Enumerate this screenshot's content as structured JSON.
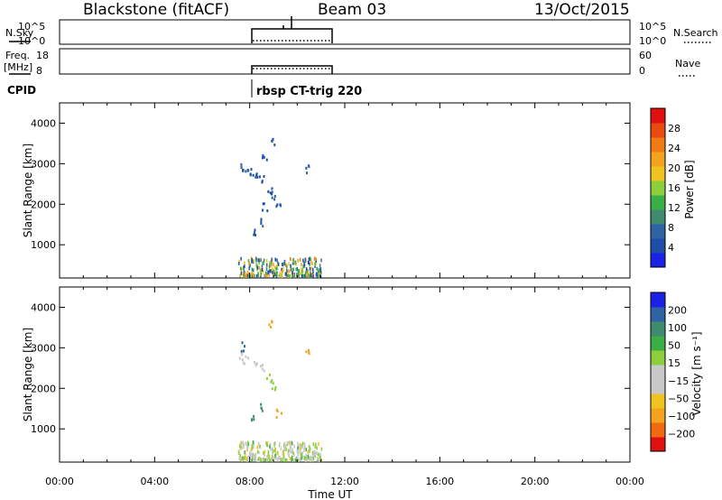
{
  "header": {
    "station": "Blackstone (fitACF)",
    "beam": "Beam 03",
    "date": "13/Oct/2015"
  },
  "top_panels": {
    "nsky_label": "N.Sky",
    "nsky_ticks": [
      "10^5",
      "10^0"
    ],
    "freq_label_1": "Freq.",
    "freq_label_2": "[MHz]",
    "freq_ticks": [
      "18",
      "8"
    ],
    "nsearch_label": "N.Search",
    "nsearch_ticks": [
      "10^5",
      "10^0"
    ],
    "nave_label": "Nave",
    "nave_ticks": [
      "60",
      "0"
    ],
    "cpid_label": "CPID",
    "cpid_text": "rbsp CT-trig 220",
    "active_hours": [
      7.5,
      11.0
    ]
  },
  "colors": {
    "power": [
      "#1a22e6",
      "#1f4ea8",
      "#2e63a6",
      "#3f8b6e",
      "#3cae46",
      "#8ccf3c",
      "#f0c31e",
      "#f5a31e",
      "#f07a14",
      "#e84a10",
      "#e01010"
    ],
    "velocity": [
      "#e01010",
      "#f06a14",
      "#f5a31e",
      "#f0c31e",
      "#c8c8c8",
      "#c8c8c8",
      "#8ccf3c",
      "#3cae46",
      "#3f8b6e",
      "#2e63a6",
      "#1a22e6"
    ]
  },
  "chart_data": [
    {
      "type": "heatmap",
      "name": "power",
      "xlabel": "Time UT",
      "ylabel": "Slant Range [km]",
      "xlim": [
        0,
        24
      ],
      "ylim": [
        180,
        4500
      ],
      "yticks": [
        "1000",
        "2000",
        "3000",
        "4000"
      ],
      "xticks": [
        "00:00",
        "04:00",
        "08:00",
        "12:00",
        "16:00",
        "20:00",
        "00:00"
      ],
      "colorbar": {
        "label": "Power [dB]",
        "ticks": [
          "4",
          "8",
          "12",
          "16",
          "20",
          "24",
          "28"
        ],
        "range": [
          0,
          32
        ]
      },
      "scatter_points": [
        {
          "x": 7.6,
          "y": 2950,
          "v": 6
        },
        {
          "x": 7.8,
          "y": 2900,
          "v": 6
        },
        {
          "x": 8.0,
          "y": 2850,
          "v": 5
        },
        {
          "x": 8.3,
          "y": 2800,
          "v": 6
        },
        {
          "x": 8.5,
          "y": 2650,
          "v": 6
        },
        {
          "x": 8.8,
          "y": 2400,
          "v": 5
        },
        {
          "x": 9.0,
          "y": 2250,
          "v": 6
        },
        {
          "x": 9.2,
          "y": 2000,
          "v": 6
        },
        {
          "x": 8.9,
          "y": 3600,
          "v": 5
        },
        {
          "x": 10.4,
          "y": 2900,
          "v": 6
        },
        {
          "x": 8.5,
          "y": 1550,
          "v": 5
        },
        {
          "x": 8.1,
          "y": 1350,
          "v": 5
        },
        {
          "x": 8.6,
          "y": 3150,
          "v": 5
        },
        {
          "x": 8.6,
          "y": 1950,
          "v": 5
        }
      ],
      "near_range_band": {
        "x": [
          7.5,
          11.0
        ],
        "y": [
          200,
          650
        ]
      }
    },
    {
      "type": "heatmap",
      "name": "velocity",
      "xlabel": "Time UT",
      "ylabel": "Slant Range [km]",
      "xlim": [
        0,
        24
      ],
      "ylim": [
        180,
        4500
      ],
      "yticks": [
        "1000",
        "2000",
        "3000",
        "4000"
      ],
      "xticks": [
        "00:00",
        "04:00",
        "08:00",
        "12:00",
        "16:00",
        "20:00",
        "00:00"
      ],
      "colorbar": {
        "label": "Velocity [m s⁻¹]",
        "ticks": [
          "200",
          "100",
          "50",
          "15",
          "−15",
          "−50",
          "−100",
          "−200"
        ],
        "range": [
          -250,
          250
        ]
      },
      "scatter_points": [
        {
          "x": 7.6,
          "y": 2800,
          "v": 10
        },
        {
          "x": 7.8,
          "y": 2750,
          "v": 0
        },
        {
          "x": 8.2,
          "y": 2700,
          "v": 20
        },
        {
          "x": 8.5,
          "y": 2500,
          "v": 20
        },
        {
          "x": 8.8,
          "y": 2300,
          "v": 40
        },
        {
          "x": 9.0,
          "y": 2050,
          "v": 40
        },
        {
          "x": 8.9,
          "y": 3600,
          "v": -120
        },
        {
          "x": 10.4,
          "y": 2900,
          "v": -150
        },
        {
          "x": 8.1,
          "y": 1350,
          "v": 150
        },
        {
          "x": 9.2,
          "y": 1400,
          "v": -150
        },
        {
          "x": 8.5,
          "y": 1550,
          "v": 150
        },
        {
          "x": 7.7,
          "y": 3050,
          "v": 200
        }
      ],
      "near_range_band": {
        "x": [
          7.5,
          11.0
        ],
        "y": [
          200,
          650
        ]
      }
    }
  ]
}
